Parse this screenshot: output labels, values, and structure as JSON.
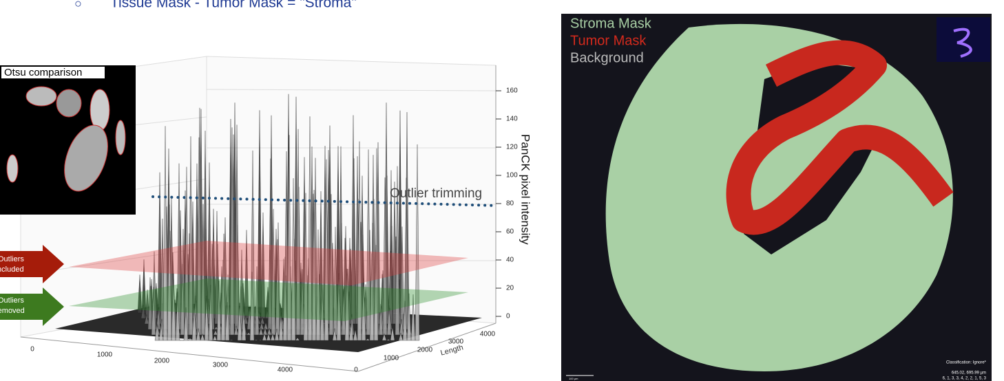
{
  "header": {
    "bullet": "○",
    "text": "Tissue Mask - Tumor Mask = \"Stroma\""
  },
  "plot": {
    "inset_title": "Otsu comparison",
    "trim_label": "Outlier trimming",
    "z_label": "PanCK pixel intensity",
    "z_ticks": [
      "0",
      "20",
      "40",
      "60",
      "80",
      "100",
      "120",
      "140",
      "160"
    ],
    "x_ticks": [
      "0",
      "1000",
      "2000",
      "3000",
      "4000"
    ],
    "length_ticks": [
      "0",
      "1000",
      "2000",
      "3000",
      "4000"
    ],
    "length_label": "Length",
    "arrows": [
      {
        "line1": "Outliers",
        "line2": "Included"
      },
      {
        "line1": "Outliers",
        "line2": "removed"
      }
    ]
  },
  "mask": {
    "legend": [
      "Stroma Mask",
      "Tumor Mask",
      "Background"
    ],
    "classification": "Classification: Ignore*",
    "coords": "645.02, 695.99 µm",
    "values": "6, 1, 3, 3, 4, 2, 2, 1, 5, 3",
    "scale": "100 µm"
  }
}
